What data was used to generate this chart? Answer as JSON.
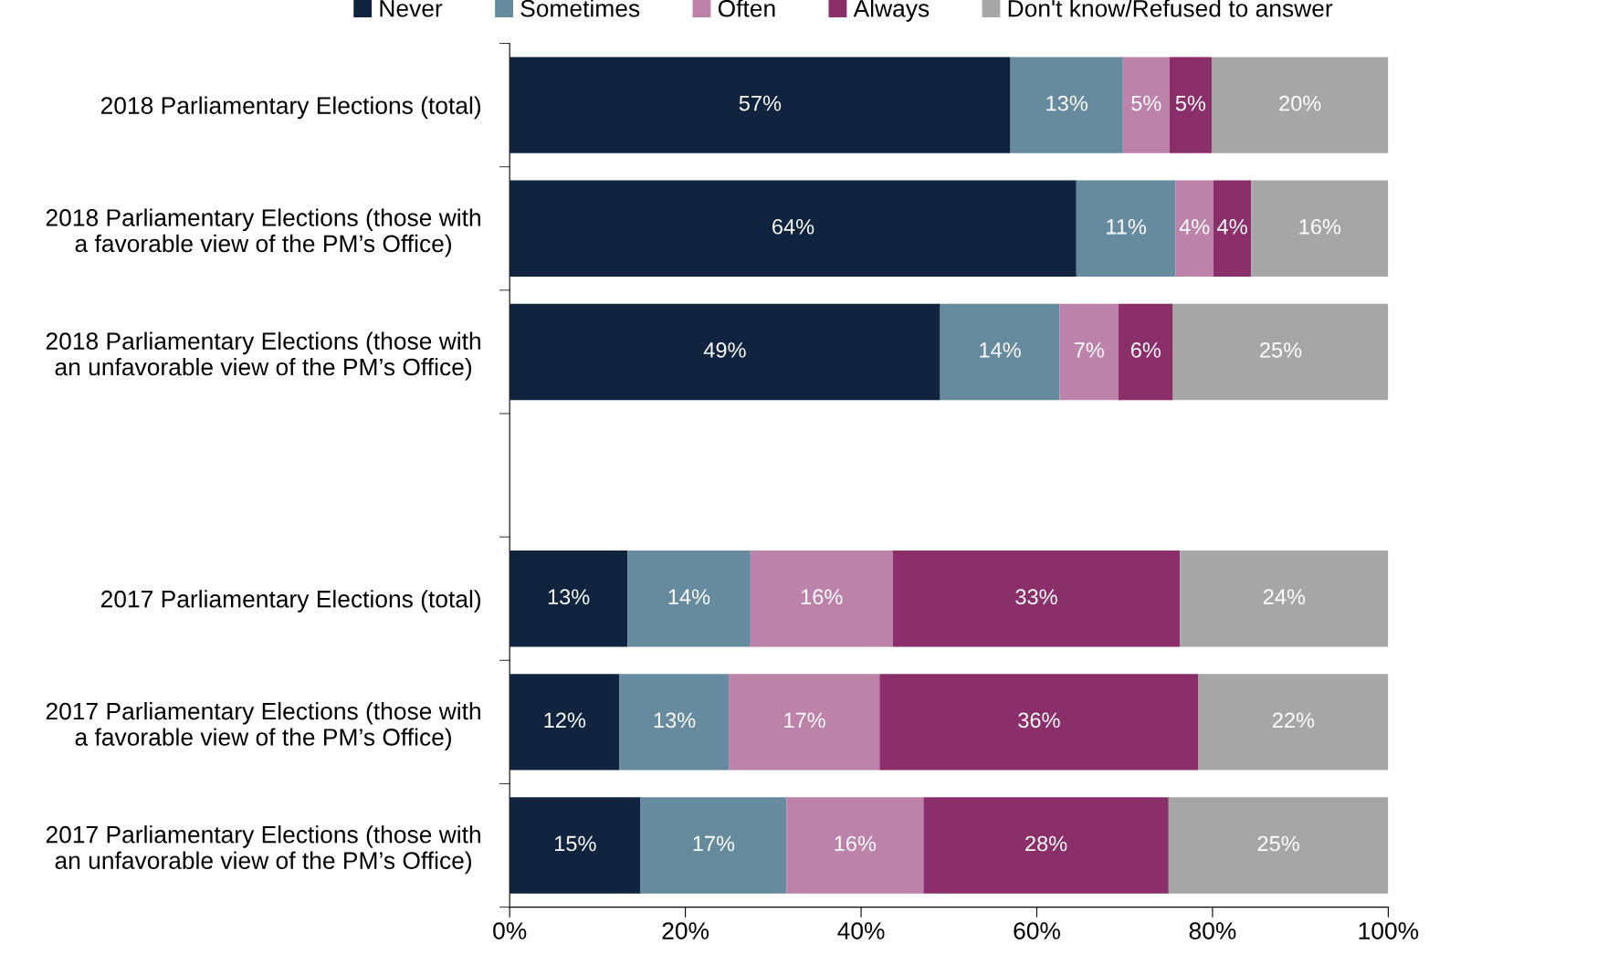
{
  "chart_data": {
    "type": "bar",
    "orientation": "horizontal",
    "stacked": true,
    "categories": [
      "2018 Parliamentary Elections (total)",
      "2018 Parliamentary Elections (those with\na favorable view of the PM’s Office)",
      "2018 Parliamentary Elections (those with\nan unfavorable view of the PM’s Office)",
      null,
      "2017 Parliamentary Elections (total)",
      "2017 Parliamentary Elections (those with\na favorable view of the PM’s Office)",
      "2017 Parliamentary Elections (those with\nan unfavorable view of the PM’s Office)"
    ],
    "series": [
      {
        "name": "Never",
        "color": "#10233f",
        "values": [
          57,
          64.5,
          49,
          null,
          13.4,
          12.5,
          14.9
        ],
        "value_labels": [
          "57%",
          "64%",
          "49%",
          null,
          "13%",
          "12%",
          "15%"
        ]
      },
      {
        "name": "Sometimes",
        "color": "#668a9e",
        "values": [
          12.8,
          11.3,
          13.6,
          null,
          14,
          12.5,
          16.6
        ],
        "value_labels": [
          "13%",
          "11%",
          "14%",
          null,
          "14%",
          "13%",
          "17%"
        ]
      },
      {
        "name": "Often",
        "color": "#bd82a9",
        "values": [
          5.3,
          4.3,
          6.7,
          null,
          16.2,
          17.1,
          15.6
        ],
        "value_labels": [
          "5%",
          "4%",
          "7%",
          null,
          "16%",
          "17%",
          "16%"
        ]
      },
      {
        "name": "Always",
        "color": "#8b2f6a",
        "values": [
          4.8,
          4.3,
          6.2,
          null,
          32.7,
          36.3,
          27.9
        ],
        "value_labels": [
          "5%",
          "4%",
          "6%",
          null,
          "33%",
          "36%",
          "28%"
        ]
      },
      {
        "name": "Don't know/Refused to answer",
        "color": "#a6a6a6",
        "values": [
          20.1,
          15.6,
          24.5,
          null,
          23.7,
          21.6,
          25
        ],
        "value_labels": [
          "20%",
          "16%",
          "25%",
          null,
          "24%",
          "22%",
          "25%"
        ]
      }
    ],
    "xlim": [
      0,
      100
    ],
    "xticks": [
      {
        "value": 0,
        "label": "0%"
      },
      {
        "value": 20,
        "label": "20%"
      },
      {
        "value": 40,
        "label": "40%"
      },
      {
        "value": 60,
        "label": "60%"
      },
      {
        "value": 80,
        "label": "80%"
      },
      {
        "value": 100,
        "label": "100%"
      }
    ],
    "grid": false,
    "legend": "top"
  }
}
